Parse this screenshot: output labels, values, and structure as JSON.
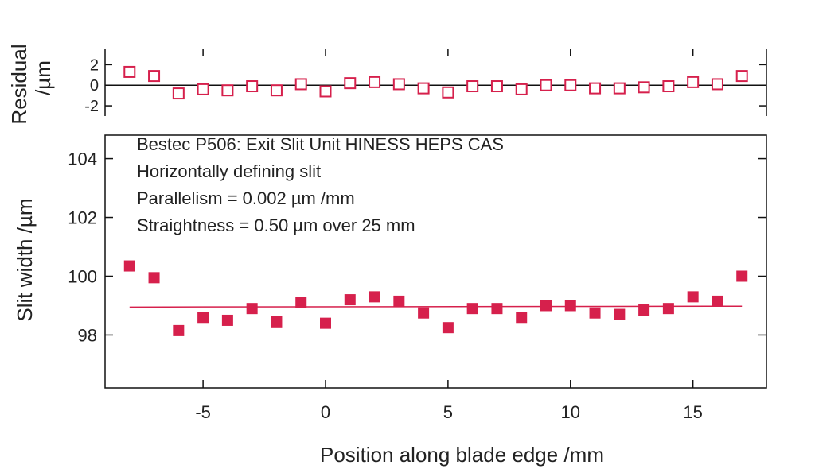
{
  "chart_data": [
    {
      "type": "scatter",
      "panel": "residual",
      "ylabel_line1": "Residual",
      "ylabel_line2": "/µm",
      "ylim": [
        -3,
        3.5
      ],
      "yticks": [
        2,
        0,
        -2
      ],
      "ytick_labels": [
        "2",
        "0",
        "-2"
      ],
      "reference_line": 0,
      "marker": "open-square",
      "color": "#d6204c",
      "x": [
        -8,
        -7,
        -6,
        -5,
        -4,
        -3,
        -2,
        -1,
        0,
        1,
        2,
        3,
        4,
        5,
        6,
        7,
        8,
        9,
        10,
        11,
        12,
        13,
        14,
        15,
        16,
        17
      ],
      "values": [
        1.3,
        0.9,
        -0.8,
        -0.4,
        -0.5,
        -0.1,
        -0.5,
        0.1,
        -0.6,
        0.2,
        0.3,
        0.1,
        -0.3,
        -0.7,
        -0.1,
        -0.1,
        -0.4,
        0.0,
        0.0,
        -0.3,
        -0.3,
        -0.2,
        -0.1,
        0.3,
        0.1,
        0.9
      ]
    },
    {
      "type": "scatter",
      "panel": "main",
      "ylabel": "Slit width /µm",
      "xlabel": "Position along blade edge /mm",
      "xlim": [
        -9,
        18
      ],
      "ylim": [
        96.2,
        104.8
      ],
      "xticks": [
        -5,
        0,
        5,
        10,
        15
      ],
      "xtick_labels": [
        "-5",
        "0",
        "5",
        "10",
        "15"
      ],
      "yticks": [
        98,
        100,
        102,
        104
      ],
      "ytick_labels": [
        "98",
        "100",
        "102",
        "104"
      ],
      "marker": "filled-square",
      "color": "#d6204c",
      "x": [
        -8,
        -7,
        -6,
        -5,
        -4,
        -3,
        -2,
        -1,
        0,
        1,
        2,
        3,
        4,
        5,
        6,
        7,
        8,
        9,
        10,
        11,
        12,
        13,
        14,
        15,
        16,
        17
      ],
      "values": [
        100.35,
        99.95,
        98.15,
        98.6,
        98.5,
        98.9,
        98.45,
        99.1,
        98.4,
        99.2,
        99.3,
        99.15,
        98.75,
        98.25,
        98.9,
        98.9,
        98.6,
        99.0,
        99.0,
        98.75,
        98.7,
        98.85,
        98.9,
        99.3,
        99.15,
        100.0
      ],
      "fit_line": {
        "x": [
          -8,
          17
        ],
        "y": [
          98.95,
          98.98
        ]
      },
      "annotations": [
        "Bestec P506: Exit Slit Unit HINESS HEPS CAS",
        "Horizontally defining slit",
        "Parallelism = 0.002 µm /mm",
        "Straightness = 0.50 µm over 25 mm"
      ]
    }
  ]
}
